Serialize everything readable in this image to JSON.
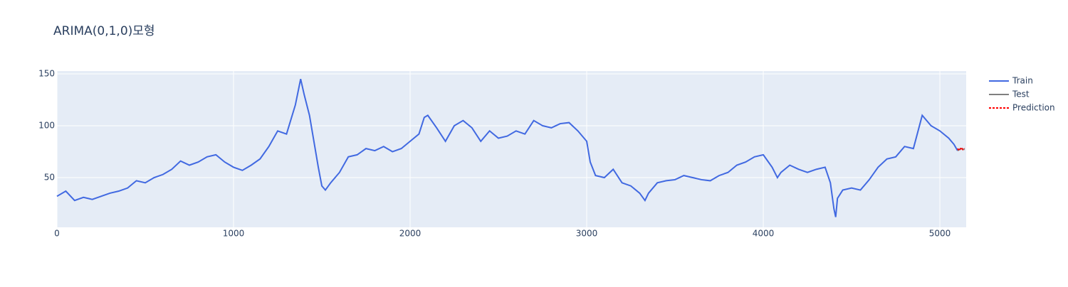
{
  "chart_data": {
    "type": "line",
    "title": "ARIMA(0,1,0)모형",
    "xlim": [
      0,
      5149
    ],
    "ylim": [
      2.1,
      152.7
    ],
    "xticks": [
      0,
      1000,
      2000,
      3000,
      4000,
      5000
    ],
    "yticks": [
      50,
      100,
      150
    ],
    "grid": true,
    "series": [
      {
        "name": "Train",
        "color": "#4169e1",
        "dash": "solid",
        "x": [
          0,
          50,
          100,
          150,
          200,
          250,
          300,
          350,
          400,
          450,
          500,
          550,
          600,
          650,
          700,
          750,
          800,
          850,
          900,
          950,
          1000,
          1050,
          1100,
          1150,
          1200,
          1250,
          1300,
          1350,
          1380,
          1400,
          1430,
          1450,
          1480,
          1500,
          1520,
          1550,
          1600,
          1650,
          1700,
          1750,
          1800,
          1850,
          1900,
          1950,
          2000,
          2050,
          2080,
          2100,
          2150,
          2200,
          2250,
          2300,
          2350,
          2400,
          2450,
          2500,
          2550,
          2600,
          2650,
          2700,
          2750,
          2800,
          2850,
          2900,
          2950,
          3000,
          3020,
          3050,
          3100,
          3150,
          3200,
          3250,
          3300,
          3330,
          3350,
          3400,
          3450,
          3500,
          3550,
          3600,
          3650,
          3700,
          3750,
          3800,
          3850,
          3900,
          3950,
          4000,
          4050,
          4080,
          4100,
          4150,
          4200,
          4250,
          4300,
          4350,
          4380,
          4400,
          4410,
          4420,
          4450,
          4500,
          4550,
          4600,
          4650,
          4700,
          4750,
          4800,
          4850,
          4900,
          4950,
          5000,
          5050,
          5080,
          5100
        ],
        "values": [
          32,
          37,
          28,
          31,
          29,
          32,
          35,
          37,
          40,
          47,
          45,
          50,
          53,
          58,
          66,
          62,
          65,
          70,
          72,
          65,
          60,
          57,
          62,
          68,
          80,
          95,
          92,
          120,
          145,
          130,
          110,
          90,
          60,
          42,
          38,
          45,
          55,
          70,
          72,
          78,
          76,
          80,
          75,
          78,
          85,
          92,
          108,
          110,
          98,
          85,
          100,
          105,
          98,
          85,
          95,
          88,
          90,
          95,
          92,
          105,
          100,
          98,
          102,
          103,
          95,
          85,
          65,
          52,
          50,
          58,
          45,
          42,
          35,
          28,
          35,
          45,
          47,
          48,
          52,
          50,
          48,
          47,
          52,
          55,
          62,
          65,
          70,
          72,
          60,
          50,
          55,
          62,
          58,
          55,
          58,
          60,
          45,
          20,
          12,
          30,
          38,
          40,
          38,
          48,
          60,
          68,
          70,
          80,
          78,
          110,
          100,
          95,
          88,
          82,
          76
        ]
      },
      {
        "name": "Test",
        "color": "#808080",
        "dash": "solid",
        "x": [
          5100,
          5120,
          5140
        ],
        "values": [
          76,
          78,
          77
        ]
      },
      {
        "name": "Prediction",
        "color": "#ff0000",
        "dash": "dotted",
        "x": [
          5100,
          5110,
          5120,
          5130,
          5140
        ],
        "values": [
          78,
          76,
          79,
          77,
          78
        ]
      }
    ]
  }
}
